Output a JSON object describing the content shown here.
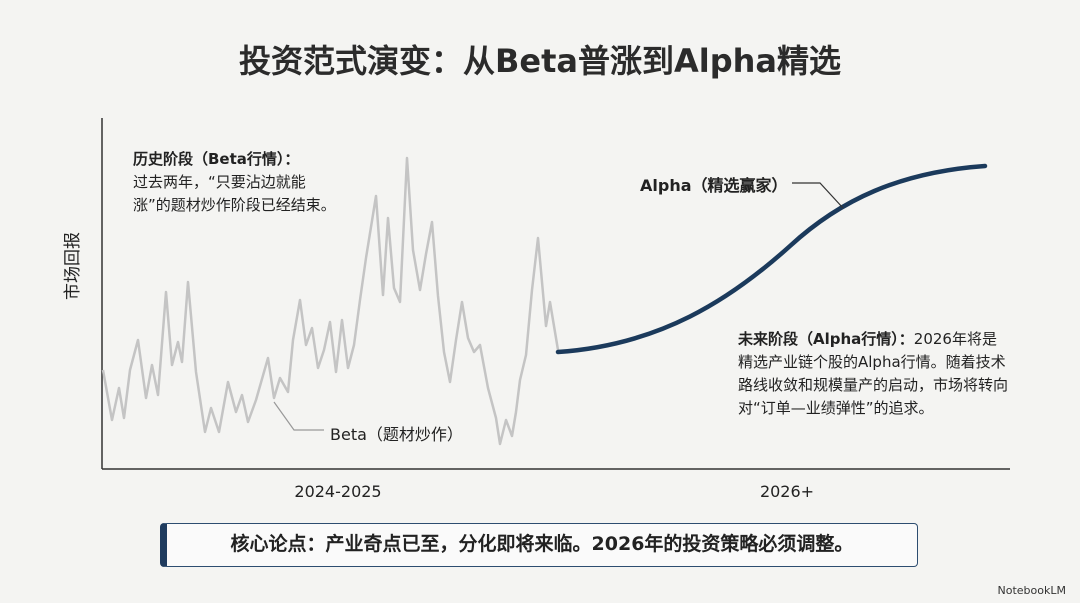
{
  "title": "投资范式演变：从Beta普涨到Alpha精选",
  "y_axis_label": "市场回报",
  "history": {
    "heading": "历史阶段（Beta行情）：",
    "body": "过去两年，“只要沾边就能涨”的题材炒作阶段已经结束。"
  },
  "beta_label": "Beta（题材炒作）",
  "alpha_label": "Alpha（精选赢家）",
  "future": {
    "heading": "未来阶段（Alpha行情）：",
    "body": "2026年将是精选产业链个股的Alpha行情。随着技术路线收敛和规模量产的启动，市场将转向对“订单—业绩弹性”的追求。"
  },
  "x_labels": [
    "2024-2025",
    "2026+"
  ],
  "callout": "核心论点：产业奇点已至，分化即将来临。2026年的投资策略必须调整。",
  "watermark": "NotebookLM"
}
